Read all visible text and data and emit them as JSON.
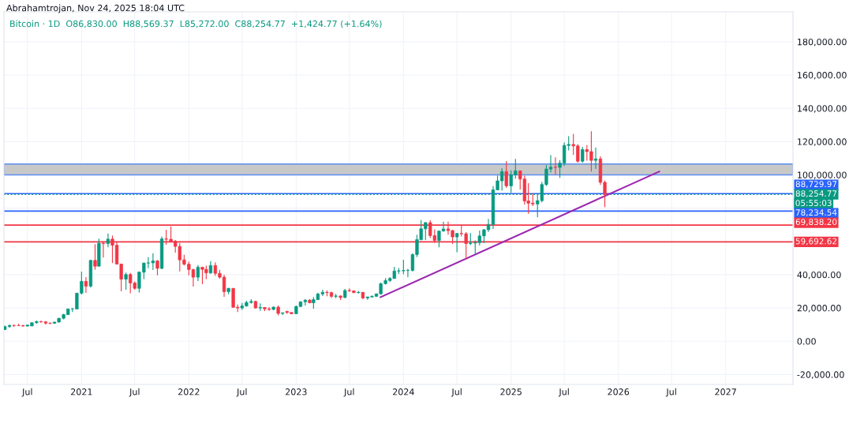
{
  "chart_data": {
    "type": "candlestick",
    "title": "Bitcoin · 1D  O86,830.00  H88,569.37  L85,272.00  C88,254.77  +1,424.77 (+1.64%)",
    "subtitle": "Abrahamtrojan, Nov 24, 2025 18:04 UTC",
    "annotations": [
      {
        "text": "05:55:03",
        "x": "2027-08-18",
        "y": 88254.77
      }
    ],
    "x": [
      "2020-04-15",
      "2020-05-01",
      "2020-05-16",
      "2020-06-01",
      "2020-06-16",
      "2020-07-01",
      "2020-07-16",
      "2020-08-01",
      "2020-08-16",
      "2020-09-01",
      "2020-09-16",
      "2020-10-01",
      "2020-10-16",
      "2020-11-01",
      "2020-11-16",
      "2020-12-01",
      "2020-12-16",
      "2021-01-01",
      "2021-01-16",
      "2021-02-01",
      "2021-02-16",
      "2021-03-01",
      "2021-03-16",
      "2021-04-01",
      "2021-04-16",
      "2021-05-01",
      "2021-05-16",
      "2021-06-01",
      "2021-06-16",
      "2021-07-01",
      "2021-07-16",
      "2021-08-01",
      "2021-08-16",
      "2021-09-01",
      "2021-09-16",
      "2021-10-01",
      "2021-10-16",
      "2021-11-01",
      "2021-11-16",
      "2021-12-01",
      "2021-12-16",
      "2022-01-01",
      "2022-01-16",
      "2022-02-01",
      "2022-02-16",
      "2022-03-01",
      "2022-03-16",
      "2022-04-01",
      "2022-04-16",
      "2022-05-01",
      "2022-05-16",
      "2022-06-01",
      "2022-06-16",
      "2022-07-01",
      "2022-07-16",
      "2022-08-01",
      "2022-08-16",
      "2022-09-01",
      "2022-09-16",
      "2022-10-01",
      "2022-10-16",
      "2022-11-01",
      "2022-11-16",
      "2022-12-01",
      "2022-12-16",
      "2023-01-01",
      "2023-01-16",
      "2023-02-01",
      "2023-02-16",
      "2023-03-01",
      "2023-03-16",
      "2023-04-01",
      "2023-04-16",
      "2023-05-01",
      "2023-05-16",
      "2023-06-01",
      "2023-06-16",
      "2023-07-01",
      "2023-07-16",
      "2023-08-01",
      "2023-08-16",
      "2023-09-01",
      "2023-09-16",
      "2023-10-01",
      "2023-10-16",
      "2023-11-01",
      "2023-11-16",
      "2023-12-01",
      "2023-12-16",
      "2024-01-01",
      "2024-01-16",
      "2024-02-01",
      "2024-02-16",
      "2024-03-01",
      "2024-03-16",
      "2024-04-01",
      "2024-04-16",
      "2024-05-01",
      "2024-05-16",
      "2024-06-01",
      "2024-06-16",
      "2024-07-01",
      "2024-07-16",
      "2024-08-01",
      "2024-08-16",
      "2024-09-01",
      "2024-09-16",
      "2024-10-01",
      "2024-10-16",
      "2024-11-01",
      "2024-11-16",
      "2024-12-01",
      "2024-12-16",
      "2025-01-01",
      "2025-01-16",
      "2025-02-01",
      "2025-02-16",
      "2025-03-01",
      "2025-03-16",
      "2025-04-01",
      "2025-04-16",
      "2025-05-01",
      "2025-05-16",
      "2025-06-01",
      "2025-06-16",
      "2025-07-01",
      "2025-07-16",
      "2025-08-01",
      "2025-08-16",
      "2025-09-01",
      "2025-09-16",
      "2025-10-01",
      "2025-10-16",
      "2025-11-01",
      "2025-11-16"
    ],
    "ohlc": [
      [
        7000,
        9400,
        6800,
        8800
      ],
      [
        8800,
        10000,
        8100,
        9500
      ],
      [
        9500,
        9900,
        8600,
        9450
      ],
      [
        9450,
        10400,
        9100,
        9400
      ],
      [
        9400,
        9800,
        8900,
        9100
      ],
      [
        9100,
        9800,
        8900,
        9700
      ],
      [
        9200,
        11400,
        9000,
        11100
      ],
      [
        11100,
        12400,
        10600,
        11800
      ],
      [
        11800,
        12300,
        11100,
        11650
      ],
      [
        11650,
        12100,
        9900,
        10900
      ],
      [
        10900,
        11200,
        10200,
        10800
      ],
      [
        10800,
        11700,
        10400,
        11500
      ],
      [
        11500,
        14000,
        11200,
        13800
      ],
      [
        13800,
        16500,
        13200,
        16000
      ],
      [
        16000,
        19500,
        15800,
        19400
      ],
      [
        19400,
        19900,
        17600,
        19400
      ],
      [
        19400,
        29000,
        19200,
        28900
      ],
      [
        28900,
        41900,
        28100,
        36000
      ],
      [
        36000,
        38500,
        29000,
        33100
      ],
      [
        33100,
        49000,
        32300,
        48600
      ],
      [
        48600,
        58300,
        43000,
        45100
      ],
      [
        45100,
        61700,
        45000,
        58900
      ],
      [
        58900,
        60000,
        50300,
        58700
      ],
      [
        58700,
        64800,
        56500,
        61400
      ],
      [
        61400,
        63500,
        47000,
        57700
      ],
      [
        57700,
        59500,
        46000,
        46400
      ],
      [
        46400,
        46600,
        30000,
        37300
      ],
      [
        37300,
        41300,
        31000,
        40100
      ],
      [
        40100,
        41000,
        28800,
        35000
      ],
      [
        35000,
        35900,
        31000,
        31800
      ],
      [
        31800,
        42000,
        29300,
        41500
      ],
      [
        41500,
        47200,
        37300,
        47000
      ],
      [
        47000,
        50500,
        43900,
        47100
      ],
      [
        47100,
        52900,
        42800,
        48300
      ],
      [
        48300,
        48800,
        39600,
        43800
      ],
      [
        43800,
        62900,
        43300,
        61500
      ],
      [
        61500,
        67000,
        58000,
        61300
      ],
      [
        61300,
        69000,
        60000,
        60100
      ],
      [
        60100,
        60800,
        53300,
        57000
      ],
      [
        57000,
        59100,
        42000,
        48900
      ],
      [
        48900,
        52000,
        45500,
        46300
      ],
      [
        46300,
        47900,
        39600,
        43100
      ],
      [
        43100,
        43500,
        32900,
        38500
      ],
      [
        38500,
        45800,
        36200,
        44500
      ],
      [
        44500,
        44500,
        34300,
        43200
      ],
      [
        43200,
        45400,
        37200,
        41100
      ],
      [
        41100,
        48200,
        40500,
        45500
      ],
      [
        45500,
        47400,
        39200,
        40800
      ],
      [
        40800,
        42900,
        37600,
        38500
      ],
      [
        38500,
        40000,
        26700,
        29800
      ],
      [
        29800,
        32000,
        28200,
        31800
      ],
      [
        31800,
        31900,
        20100,
        20400
      ],
      [
        20400,
        22000,
        17600,
        20000
      ],
      [
        20000,
        23000,
        18800,
        21200
      ],
      [
        21200,
        24300,
        20800,
        23300
      ],
      [
        23300,
        25200,
        22600,
        23900
      ],
      [
        23900,
        24400,
        19500,
        20000
      ],
      [
        20000,
        22800,
        18200,
        20300
      ],
      [
        20300,
        20500,
        18100,
        19400
      ],
      [
        19400,
        20500,
        18200,
        19100
      ],
      [
        19100,
        21000,
        18600,
        20500
      ],
      [
        20500,
        21500,
        15500,
        16700
      ],
      [
        16700,
        17200,
        15800,
        17100
      ],
      [
        17900,
        18400,
        16500,
        17300
      ],
      [
        17300,
        17400,
        16300,
        16500
      ],
      [
        16500,
        21500,
        16500,
        20900
      ],
      [
        20900,
        23900,
        20500,
        23700
      ],
      [
        23700,
        25200,
        21400,
        24700
      ],
      [
        24700,
        25300,
        22800,
        23100
      ],
      [
        23100,
        26500,
        19600,
        25000
      ],
      [
        25000,
        29200,
        24900,
        28400
      ],
      [
        28400,
        31000,
        27200,
        29400
      ],
      [
        29400,
        30500,
        27000,
        29200
      ],
      [
        29200,
        29800,
        26000,
        27000
      ],
      [
        27000,
        28400,
        25800,
        27200
      ],
      [
        27200,
        27500,
        24800,
        26300
      ],
      [
        26300,
        31400,
        25800,
        30500
      ],
      [
        30500,
        31800,
        29600,
        30300
      ],
      [
        30300,
        30400,
        28900,
        29200
      ],
      [
        29200,
        30200,
        28700,
        29400
      ],
      [
        29400,
        29500,
        25200,
        26000
      ],
      [
        26000,
        26800,
        24900,
        26600
      ],
      [
        26600,
        27500,
        26200,
        27000
      ],
      [
        27000,
        28600,
        26500,
        28500
      ],
      [
        28500,
        35200,
        28000,
        34600
      ],
      [
        34600,
        37900,
        34000,
        36500
      ],
      [
        36500,
        38500,
        35600,
        37700
      ],
      [
        37700,
        44700,
        37600,
        42200
      ],
      [
        42200,
        44000,
        40500,
        42300
      ],
      [
        42300,
        49000,
        40300,
        42500
      ],
      [
        42500,
        43500,
        38500,
        42600
      ],
      [
        42600,
        52800,
        41900,
        52100
      ],
      [
        52100,
        64000,
        50600,
        61100
      ],
      [
        61100,
        72800,
        60600,
        67600
      ],
      [
        67600,
        71600,
        60800,
        71300
      ],
      [
        71300,
        72700,
        62000,
        63500
      ],
      [
        63500,
        67200,
        59100,
        60600
      ],
      [
        60600,
        66500,
        56500,
        66200
      ],
      [
        66200,
        71900,
        66000,
        67500
      ],
      [
        67500,
        71900,
        64000,
        66500
      ],
      [
        66500,
        67000,
        58400,
        62700
      ],
      [
        62700,
        65000,
        53500,
        64800
      ],
      [
        64800,
        70000,
        63000,
        64600
      ],
      [
        64600,
        65600,
        49100,
        58700
      ],
      [
        58700,
        65000,
        57800,
        59000
      ],
      [
        59000,
        60600,
        52600,
        59300
      ],
      [
        59300,
        66500,
        57500,
        63300
      ],
      [
        63300,
        67500,
        58900,
        67000
      ],
      [
        67000,
        73600,
        65700,
        70200
      ],
      [
        70200,
        93200,
        67500,
        91000
      ],
      [
        91000,
        99600,
        90700,
        96400
      ],
      [
        96400,
        104000,
        90500,
        102000
      ],
      [
        102000,
        108300,
        92200,
        93400
      ],
      [
        93400,
        102700,
        89200,
        100000
      ],
      [
        100000,
        109600,
        97800,
        102400
      ],
      [
        102400,
        102500,
        91200,
        97500
      ],
      [
        97500,
        99500,
        82100,
        84300
      ],
      [
        84300,
        95000,
        76600,
        83000
      ],
      [
        83000,
        88800,
        81200,
        82500
      ],
      [
        82500,
        88500,
        74500,
        84500
      ],
      [
        84500,
        95700,
        83500,
        94200
      ],
      [
        94200,
        105800,
        93400,
        103500
      ],
      [
        103500,
        111900,
        101400,
        104600
      ],
      [
        104600,
        110600,
        100400,
        104500
      ],
      [
        104500,
        108900,
        98200,
        107100
      ],
      [
        107100,
        119500,
        105300,
        117700
      ],
      [
        117700,
        123200,
        114700,
        118300
      ],
      [
        118300,
        124500,
        112000,
        117400
      ],
      [
        117400,
        118500,
        107300,
        108200
      ],
      [
        108200,
        116800,
        107300,
        115200
      ],
      [
        115200,
        117900,
        108600,
        114000
      ],
      [
        114000,
        126200,
        102000,
        108700
      ],
      [
        108700,
        116400,
        103500,
        109600
      ],
      [
        109600,
        111200,
        94000,
        95500
      ],
      [
        95500,
        96600,
        80600,
        88254.77
      ]
    ],
    "colors": [
      "#089981",
      "#089981",
      "#f23645",
      "#f23645",
      "#f23645",
      "#089981",
      "#089981",
      "#089981",
      "#f23645",
      "#f23645",
      "#f23645",
      "#089981",
      "#089981",
      "#089981",
      "#089981",
      "#089981",
      "#089981",
      "#089981",
      "#f23645",
      "#089981",
      "#f23645",
      "#089981",
      "#f23645",
      "#089981",
      "#f23645",
      "#f23645",
      "#f23645",
      "#089981",
      "#f23645",
      "#f23645",
      "#089981",
      "#089981",
      "#089981",
      "#089981",
      "#f23645",
      "#089981",
      "#f23645",
      "#f23645",
      "#f23645",
      "#f23645",
      "#f23645",
      "#f23645",
      "#f23645",
      "#089981",
      "#f23645",
      "#f23645",
      "#089981",
      "#f23645",
      "#f23645",
      "#f23645",
      "#089981",
      "#f23645",
      "#f23645",
      "#089981",
      "#089981",
      "#089981",
      "#f23645",
      "#089981",
      "#f23645",
      "#f23645",
      "#089981",
      "#f23645",
      "#089981",
      "#f23645",
      "#f23645",
      "#089981",
      "#089981",
      "#089981",
      "#f23645",
      "#089981",
      "#089981",
      "#089981",
      "#f23645",
      "#f23645",
      "#089981",
      "#f23645",
      "#089981",
      "#f23645",
      "#f23645",
      "#089981",
      "#f23645",
      "#089981",
      "#089981",
      "#089981",
      "#089981",
      "#089981",
      "#089981",
      "#089981",
      "#089981",
      "#089981",
      "#089981",
      "#089981",
      "#089981",
      "#089981",
      "#089981",
      "#f23645",
      "#f23645",
      "#089981",
      "#089981",
      "#f23645",
      "#f23645",
      "#089981",
      "#f23645",
      "#f23645",
      "#089981",
      "#089981",
      "#089981",
      "#089981",
      "#089981",
      "#089981",
      "#089981",
      "#089981",
      "#f23645",
      "#089981",
      "#089981",
      "#f23645",
      "#f23645",
      "#f23645",
      "#f23645",
      "#089981",
      "#089981",
      "#089981",
      "#089981",
      "#f23645",
      "#089981",
      "#089981",
      "#089981",
      "#f23645",
      "#f23645",
      "#089981",
      "#f23645",
      "#f23645",
      "#089981",
      "#f23645",
      "#f23645"
    ],
    "series": [
      {
        "type": "line",
        "color": "#9c27b0",
        "x": [
          "2023-10-15",
          "2026-05-20"
        ],
        "values": [
          26500,
          102000
        ]
      }
    ],
    "ref_lines": [
      {
        "axis": "y",
        "value": 88729.97,
        "label": "88,729.97",
        "color": "#2962ff",
        "line_style": "solid"
      },
      {
        "axis": "y",
        "value": 88254.77,
        "label": "88,254.77",
        "color": "#089981",
        "line_style": "dotted"
      },
      {
        "axis": "y",
        "value": 78234.54,
        "label": "78,234.54",
        "color": "#2962ff",
        "line_style": "solid"
      },
      {
        "axis": "y",
        "value": 69838.2,
        "label": "69,838.20",
        "color": "#f23645",
        "line_style": "solid"
      },
      {
        "axis": "y",
        "value": 59692.62,
        "label": "59,692.62",
        "color": "#f23645",
        "line_style": "solid"
      }
    ],
    "bands": [
      {
        "axis": "y",
        "from": 100000,
        "to": 106500,
        "color": "#c8c8c8"
      }
    ],
    "xlim": [
      "2020-04-12",
      "2027-08-18"
    ],
    "xticks": [
      {
        "value": "2020-07-01",
        "label": "Jul"
      },
      {
        "value": "2021-01-01",
        "label": "2021"
      },
      {
        "value": "2021-07-01",
        "label": "Jul"
      },
      {
        "value": "2022-01-01",
        "label": "2022"
      },
      {
        "value": "2022-07-01",
        "label": "Jul"
      },
      {
        "value": "2023-01-01",
        "label": "2023"
      },
      {
        "value": "2023-07-01",
        "label": "Jul"
      },
      {
        "value": "2024-01-01",
        "label": "2024"
      },
      {
        "value": "2024-07-01",
        "label": "Jul"
      },
      {
        "value": "2025-01-01",
        "label": "2025"
      },
      {
        "value": "2025-07-01",
        "label": "Jul"
      },
      {
        "value": "2026-01-01",
        "label": "2026"
      },
      {
        "value": "2026-07-01",
        "label": "Jul"
      },
      {
        "value": "2027-01-01",
        "label": "2027"
      }
    ],
    "ylim": [
      -26000,
      198000
    ],
    "yticks": [
      {
        "value": -20000,
        "label": "-20,000.00"
      },
      {
        "value": 0,
        "label": "0.00"
      },
      {
        "value": 20000,
        "label": "20,000.00"
      },
      {
        "value": 40000,
        "label": "40,000.00"
      },
      {
        "value": 60000,
        "label": null
      },
      {
        "value": 80000,
        "label": null
      },
      {
        "value": 100000,
        "label": "100,000.00"
      },
      {
        "value": 120000,
        "label": "120,000.00"
      },
      {
        "value": 140000,
        "label": "140,000.00"
      },
      {
        "value": 160000,
        "label": "160,000.00"
      },
      {
        "value": 180000,
        "label": "180,000.00"
      }
    ],
    "grid": true
  }
}
